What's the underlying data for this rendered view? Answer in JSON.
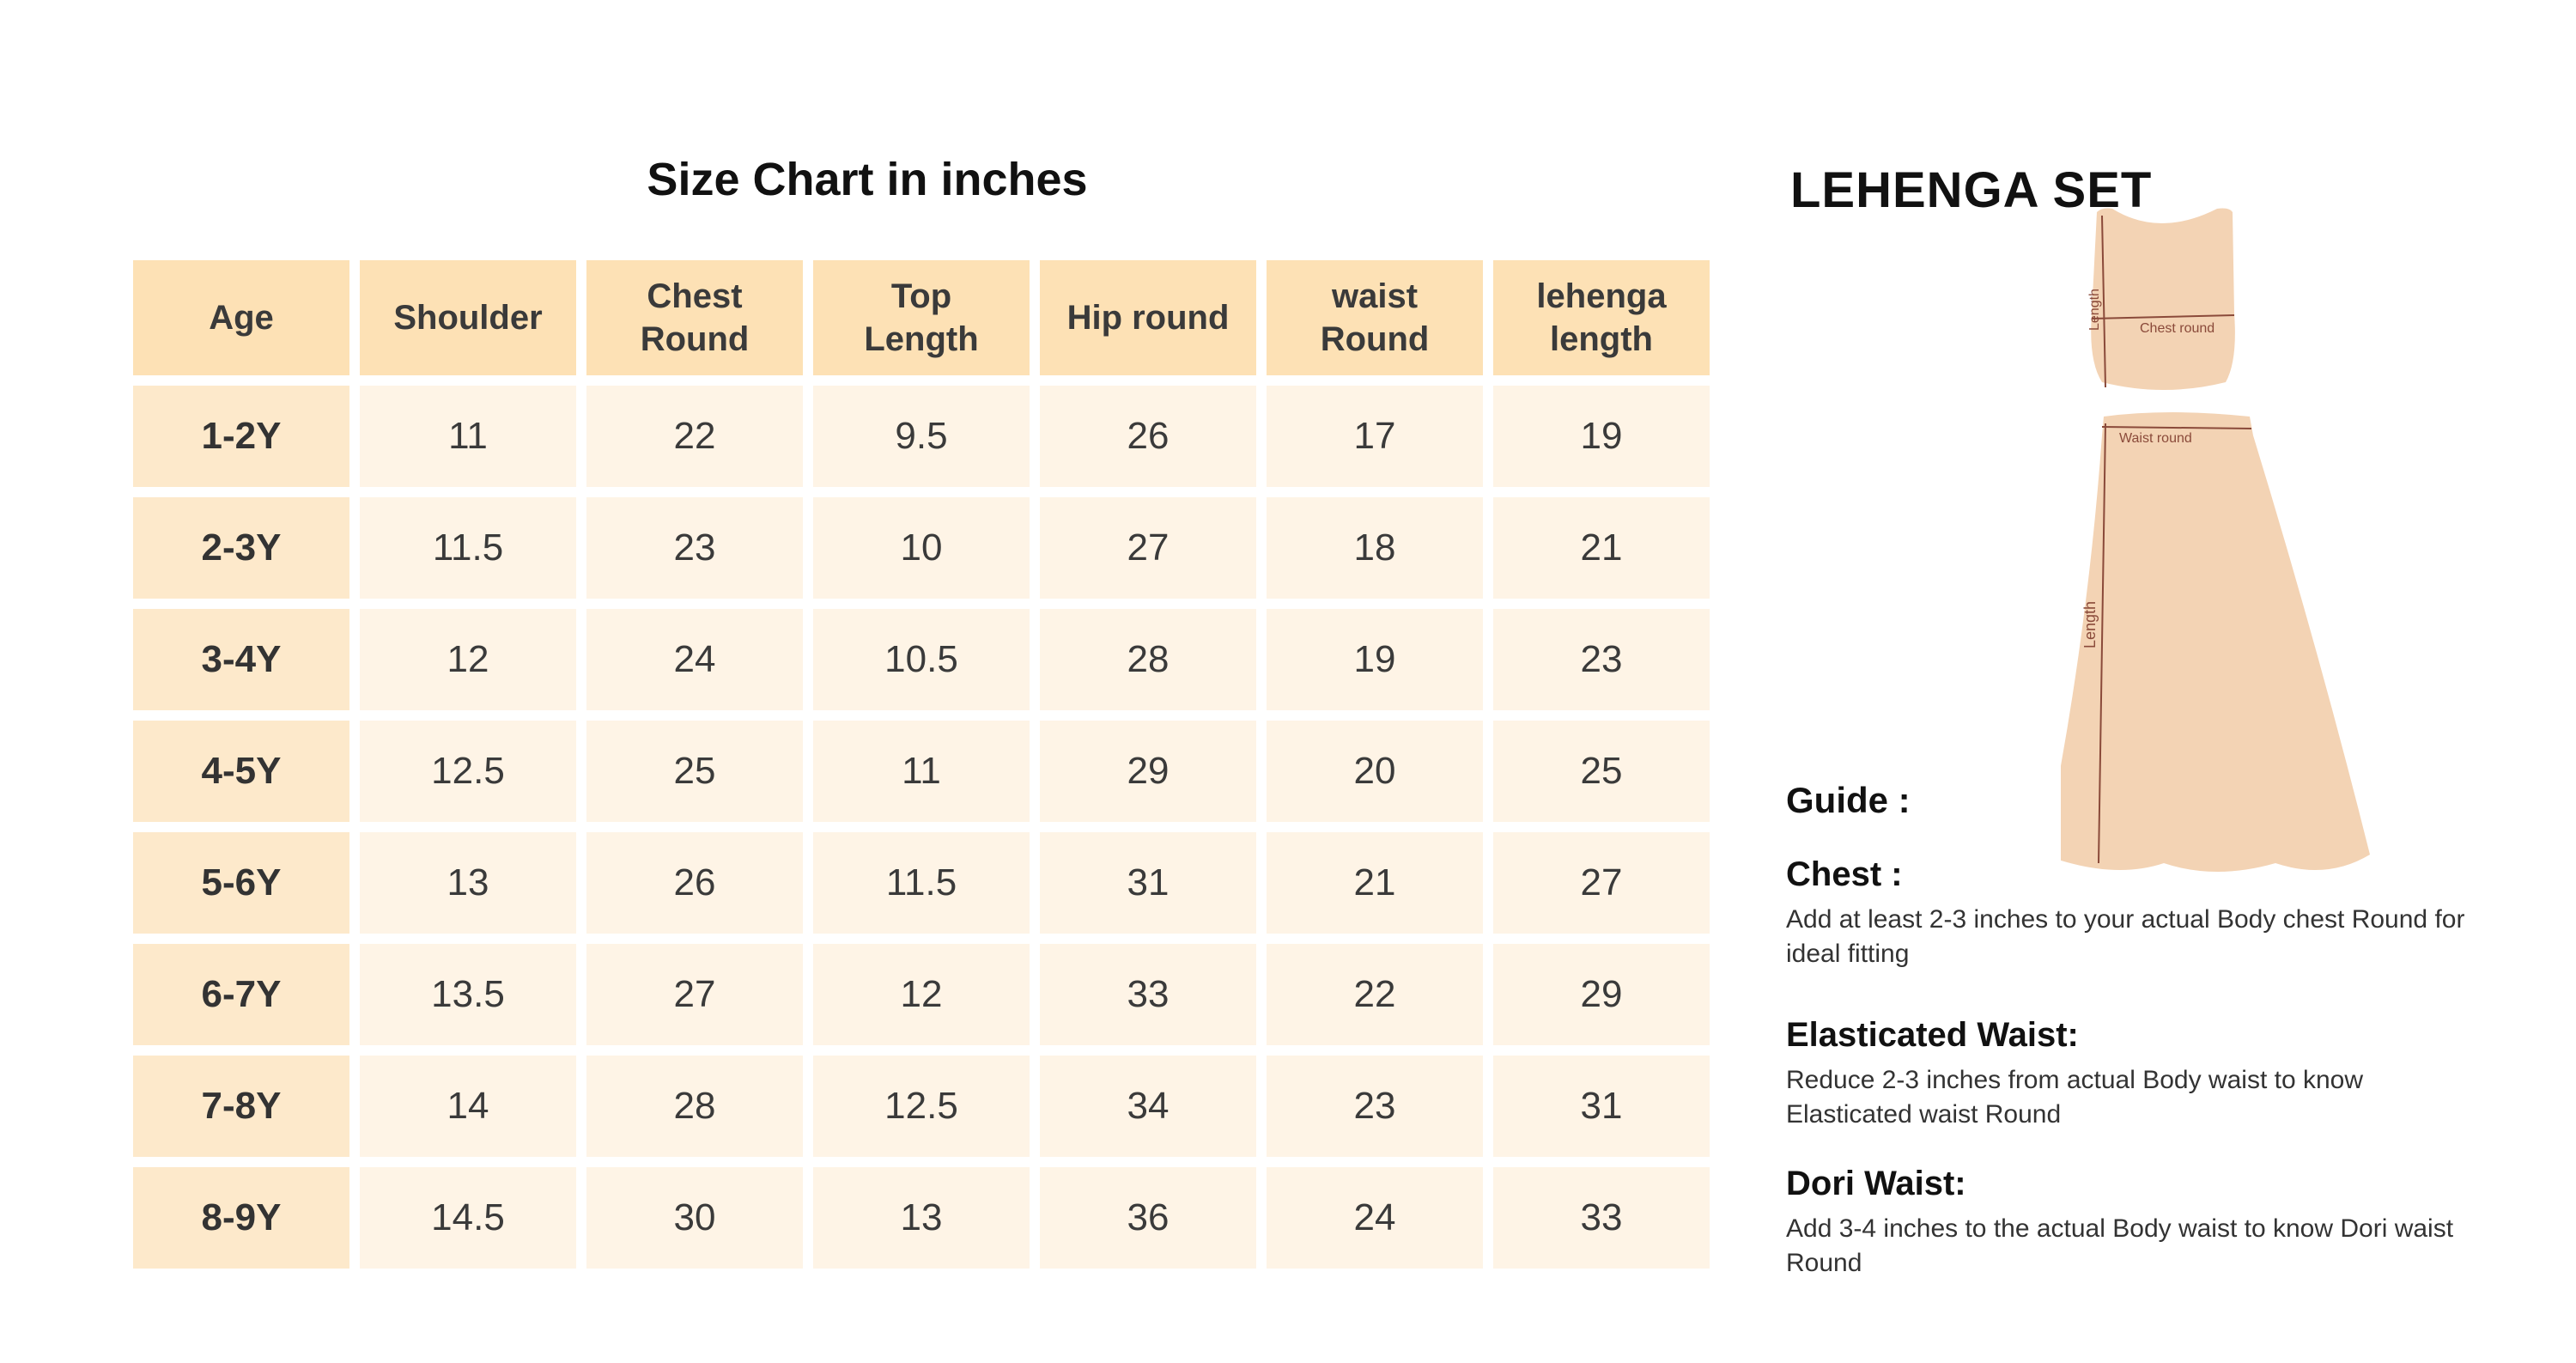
{
  "chart_title": "Size Chart in inches",
  "table": {
    "headers": [
      "Age",
      "Shoulder",
      "Chest\nRound",
      "Top\nLength",
      "Hip round",
      "waist\nRound",
      "lehenga\nlength"
    ],
    "rows": [
      [
        "1-2Y",
        "11",
        "22",
        "9.5",
        "26",
        "17",
        "19"
      ],
      [
        "2-3Y",
        "11.5",
        "23",
        "10",
        "27",
        "18",
        "21"
      ],
      [
        "3-4Y",
        "12",
        "24",
        "10.5",
        "28",
        "19",
        "23"
      ],
      [
        "4-5Y",
        "12.5",
        "25",
        "11",
        "29",
        "20",
        "25"
      ],
      [
        "5-6Y",
        "13",
        "26",
        "11.5",
        "31",
        "21",
        "27"
      ],
      [
        "6-7Y",
        "13.5",
        "27",
        "12",
        "33",
        "22",
        "29"
      ],
      [
        "7-8Y",
        "14",
        "28",
        "12.5",
        "34",
        "23",
        "31"
      ],
      [
        "8-9Y",
        "14.5",
        "30",
        "13",
        "36",
        "24",
        "33"
      ]
    ]
  },
  "set_title": "LEHENGA SET",
  "illustration": {
    "top_labels": {
      "length": "Length",
      "chest": "Chest round"
    },
    "skirt_labels": {
      "waist": "Waist round",
      "length": "Length"
    }
  },
  "guide": {
    "heading": "Guide :",
    "sections": [
      {
        "title": "Chest :",
        "text": "Add at least 2-3 inches to your actual Body chest Round for ideal fitting"
      },
      {
        "title": "Elasticated Waist:",
        "text": "Reduce  2-3 inches from actual Body waist  to know Elasticated waist Round"
      },
      {
        "title": "Dori Waist:",
        "text": "Add 3-4 inches to the actual Body waist  to know Dori waist Round"
      }
    ]
  },
  "colors": {
    "header_bg": "#fde1b5",
    "age_bg": "#fde9cb",
    "cell_bg": "#fef4e6",
    "garment_fill": "#f3d3b4",
    "measure_line": "#8a4a3a"
  }
}
